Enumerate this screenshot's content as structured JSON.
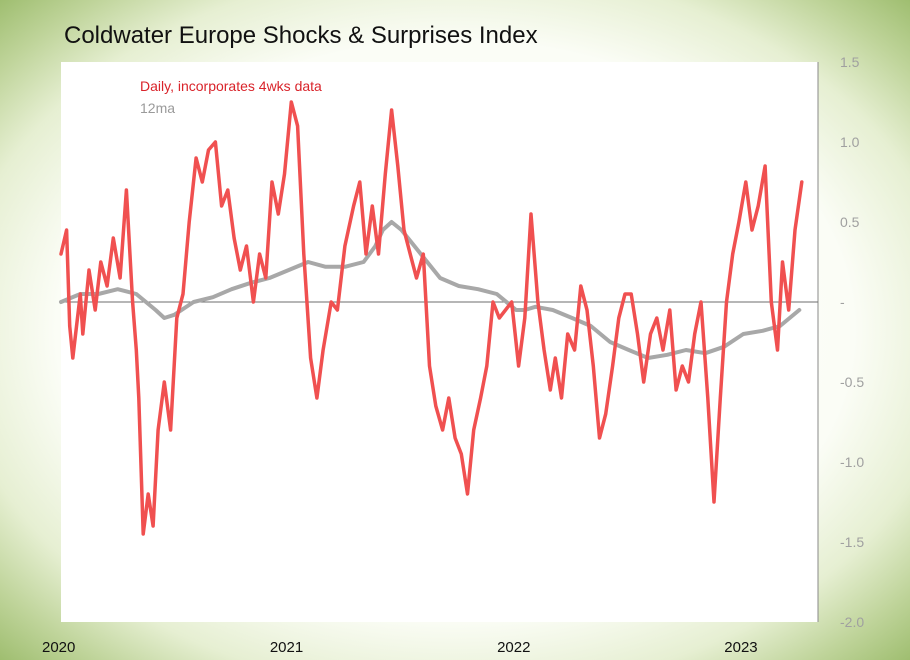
{
  "chart_data": {
    "type": "line",
    "title": "Coldwater Europe Shocks & Surprises Index",
    "ylim": [
      -2.0,
      1.5
    ],
    "xlim": [
      "2020-01-01",
      "2023-05-01"
    ],
    "y_ticks": [
      {
        "value": 1.5,
        "label": "1.5"
      },
      {
        "value": 1.0,
        "label": "1.0"
      },
      {
        "value": 0.5,
        "label": "0.5"
      },
      {
        "value": 0.0,
        "label": "-"
      },
      {
        "value": -0.5,
        "label": "-0.5"
      },
      {
        "value": -1.0,
        "label": "-1.0"
      },
      {
        "value": -1.5,
        "label": "-1.5"
      },
      {
        "value": -2.0,
        "label": "-2.0"
      }
    ],
    "x_ticks": [
      {
        "date": "2020-01-01",
        "label": "2020"
      },
      {
        "date": "2021-01-01",
        "label": "2021"
      },
      {
        "date": "2022-01-01",
        "label": "2022"
      },
      {
        "date": "2023-01-01",
        "label": "2023"
      }
    ],
    "legend": "top-left",
    "grid": false,
    "colors": {
      "daily": "#f05050",
      "ma": "#a8a8a8",
      "axis": "#8a8a8a",
      "frame": "#9cbd6a"
    },
    "series": [
      {
        "name": "Daily, incorporates 4wks data",
        "x": [
          "2020-01-01",
          "2020-01-10",
          "2020-01-15",
          "2020-01-20",
          "2020-02-01",
          "2020-02-05",
          "2020-02-15",
          "2020-02-25",
          "2020-03-05",
          "2020-03-15",
          "2020-03-25",
          "2020-04-05",
          "2020-04-15",
          "2020-04-25",
          "2020-05-01",
          "2020-05-05",
          "2020-05-12",
          "2020-05-20",
          "2020-05-28",
          "2020-06-05",
          "2020-06-15",
          "2020-06-25",
          "2020-07-05",
          "2020-07-15",
          "2020-07-25",
          "2020-08-05",
          "2020-08-15",
          "2020-08-25",
          "2020-09-05",
          "2020-09-15",
          "2020-09-25",
          "2020-10-05",
          "2020-10-15",
          "2020-10-25",
          "2020-11-05",
          "2020-11-15",
          "2020-11-25",
          "2020-12-05",
          "2020-12-15",
          "2020-12-25",
          "2021-01-05",
          "2021-01-15",
          "2021-01-25",
          "2021-02-05",
          "2021-02-15",
          "2021-02-25",
          "2021-03-10",
          "2021-03-20",
          "2021-04-01",
          "2021-04-15",
          "2021-04-25",
          "2021-05-05",
          "2021-05-15",
          "2021-05-25",
          "2021-06-05",
          "2021-06-15",
          "2021-06-25",
          "2021-07-05",
          "2021-07-15",
          "2021-07-25",
          "2021-08-05",
          "2021-08-15",
          "2021-08-25",
          "2021-09-05",
          "2021-09-15",
          "2021-09-25",
          "2021-10-05",
          "2021-10-15",
          "2021-10-25",
          "2021-11-05",
          "2021-11-15",
          "2021-11-25",
          "2021-12-05",
          "2021-12-15",
          "2021-12-25",
          "2022-01-05",
          "2022-01-15",
          "2022-01-25",
          "2022-02-05",
          "2022-02-15",
          "2022-02-25",
          "2022-03-05",
          "2022-03-15",
          "2022-03-25",
          "2022-04-05",
          "2022-04-15",
          "2022-04-25",
          "2022-05-05",
          "2022-05-15",
          "2022-05-25",
          "2022-06-05",
          "2022-06-15",
          "2022-06-25",
          "2022-07-05",
          "2022-07-15",
          "2022-07-25",
          "2022-08-05",
          "2022-08-15",
          "2022-08-25",
          "2022-09-05",
          "2022-09-15",
          "2022-09-25",
          "2022-10-05",
          "2022-10-15",
          "2022-10-25",
          "2022-11-05",
          "2022-11-15",
          "2022-11-25",
          "2022-12-05",
          "2022-12-15",
          "2022-12-25",
          "2023-01-05",
          "2023-01-15",
          "2023-01-25",
          "2023-02-05",
          "2023-02-15",
          "2023-02-25",
          "2023-03-05",
          "2023-03-15",
          "2023-03-25",
          "2023-04-05"
        ],
        "values": [
          0.3,
          0.45,
          -0.15,
          -0.35,
          0.05,
          -0.2,
          0.2,
          -0.05,
          0.25,
          0.1,
          0.4,
          0.15,
          0.7,
          0.0,
          -0.3,
          -0.6,
          -1.45,
          -1.2,
          -1.4,
          -0.8,
          -0.5,
          -0.8,
          -0.1,
          0.05,
          0.5,
          0.9,
          0.75,
          0.95,
          1.0,
          0.6,
          0.7,
          0.4,
          0.2,
          0.35,
          0.0,
          0.3,
          0.15,
          0.75,
          0.55,
          0.8,
          1.25,
          1.1,
          0.3,
          -0.35,
          -0.6,
          -0.3,
          0.0,
          -0.05,
          0.35,
          0.6,
          0.75,
          0.3,
          0.6,
          0.3,
          0.8,
          1.2,
          0.85,
          0.45,
          0.3,
          0.15,
          0.3,
          -0.4,
          -0.65,
          -0.8,
          -0.6,
          -0.85,
          -0.95,
          -1.2,
          -0.8,
          -0.6,
          -0.4,
          0.0,
          -0.1,
          -0.05,
          0.0,
          -0.4,
          -0.1,
          0.55,
          0.0,
          -0.3,
          -0.55,
          -0.35,
          -0.6,
          -0.2,
          -0.3,
          0.1,
          -0.05,
          -0.4,
          -0.85,
          -0.7,
          -0.4,
          -0.1,
          0.05,
          0.05,
          -0.2,
          -0.5,
          -0.2,
          -0.1,
          -0.3,
          -0.05,
          -0.55,
          -0.4,
          -0.5,
          -0.2,
          0.0,
          -0.6,
          -1.25,
          -0.6,
          0.0,
          0.3,
          0.5,
          0.75,
          0.45,
          0.6,
          0.85,
          0.0,
          -0.3,
          0.25,
          -0.05,
          0.45,
          0.75
        ]
      },
      {
        "name": "12ma",
        "x": [
          "2020-01-01",
          "2020-02-01",
          "2020-03-01",
          "2020-04-01",
          "2020-05-01",
          "2020-06-01",
          "2020-06-15",
          "2020-07-01",
          "2020-08-01",
          "2020-09-01",
          "2020-10-01",
          "2020-11-01",
          "2020-12-01",
          "2021-01-01",
          "2021-02-01",
          "2021-03-01",
          "2021-04-01",
          "2021-05-01",
          "2021-05-20",
          "2021-06-01",
          "2021-06-15",
          "2021-07-01",
          "2021-08-01",
          "2021-09-01",
          "2021-10-01",
          "2021-11-01",
          "2021-12-01",
          "2022-01-01",
          "2022-01-15",
          "2022-02-01",
          "2022-03-01",
          "2022-04-01",
          "2022-05-01",
          "2022-06-01",
          "2022-07-01",
          "2022-08-01",
          "2022-09-01",
          "2022-10-01",
          "2022-11-01",
          "2022-12-01",
          "2023-01-01",
          "2023-02-01",
          "2023-03-01",
          "2023-04-01"
        ],
        "values": [
          0.0,
          0.05,
          0.05,
          0.08,
          0.05,
          -0.05,
          -0.1,
          -0.08,
          0.0,
          0.03,
          0.08,
          0.12,
          0.15,
          0.2,
          0.25,
          0.22,
          0.22,
          0.25,
          0.35,
          0.45,
          0.5,
          0.45,
          0.3,
          0.15,
          0.1,
          0.08,
          0.05,
          -0.05,
          -0.05,
          -0.03,
          -0.05,
          -0.1,
          -0.15,
          -0.25,
          -0.3,
          -0.35,
          -0.33,
          -0.3,
          -0.32,
          -0.28,
          -0.2,
          -0.18,
          -0.15,
          -0.05
        ]
      }
    ]
  }
}
